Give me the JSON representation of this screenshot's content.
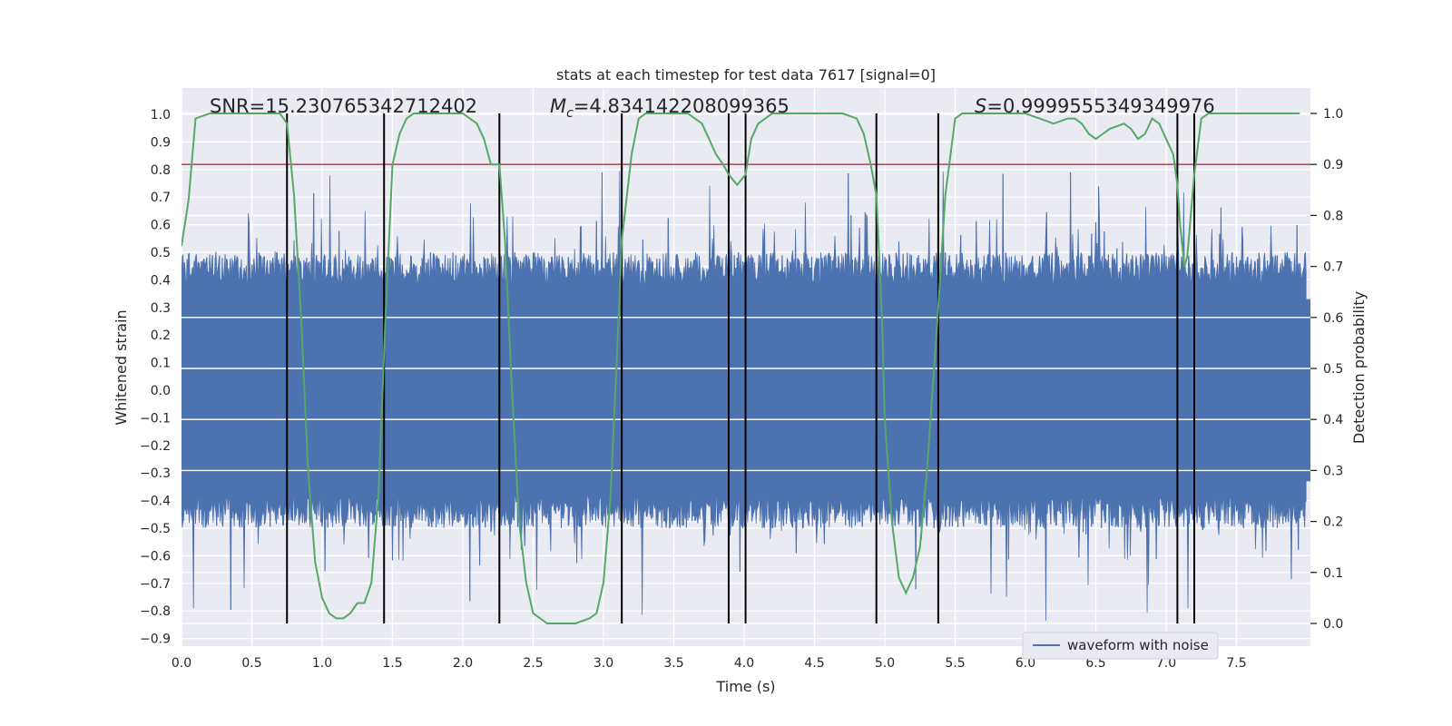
{
  "chart_data": {
    "type": "line",
    "title": "stats at each timestep for test data 7617 [signal=0]",
    "xlabel": "Time (s)",
    "ylabel_left": "Whitened strain",
    "ylabel_right": "Detection probability",
    "xlim": [
      0.0,
      8.0
    ],
    "ylim_left": [
      -0.95,
      1.08
    ],
    "ylim_right": [
      -0.05,
      1.03
    ],
    "x_ticks": [
      0.0,
      0.5,
      1.0,
      1.5,
      2.0,
      2.5,
      3.0,
      3.5,
      4.0,
      4.5,
      5.0,
      5.5,
      6.0,
      6.5,
      7.0,
      7.5
    ],
    "x_tick_labels": [
      "0.0",
      "0.5",
      "1.0",
      "1.5",
      "2.0",
      "2.5",
      "3.0",
      "3.5",
      "4.0",
      "4.5",
      "5.0",
      "5.5",
      "6.0",
      "6.5",
      "7.0",
      "7.5"
    ],
    "y_left_ticks": [
      1.0,
      0.9,
      0.8,
      0.7,
      0.6,
      0.5,
      0.4,
      0.3,
      0.2,
      0.1,
      0.0,
      -0.1,
      -0.2,
      -0.3,
      -0.4,
      -0.5,
      -0.6,
      -0.7,
      -0.8,
      -0.9
    ],
    "y_left_tick_labels": [
      "1.0",
      "0.9",
      "0.8",
      "0.7",
      "0.6",
      "0.5",
      "0.4",
      "0.3",
      "0.2",
      "0.1",
      "0.0",
      "−0.1",
      "−0.2",
      "−0.3",
      "−0.4",
      "−0.5",
      "−0.6",
      "−0.7",
      "−0.8",
      "−0.9"
    ],
    "y_right_ticks": [
      1.0,
      0.9,
      0.8,
      0.7,
      0.6,
      0.5,
      0.4,
      0.3,
      0.2,
      0.1,
      0.0
    ],
    "y_right_tick_labels": [
      "1.0",
      "0.9",
      "0.8",
      "0.7",
      "0.6",
      "0.5",
      "0.4",
      "0.3",
      "0.2",
      "0.1",
      "0.0"
    ],
    "annotations": {
      "snr": "SNR=15.230765342712402",
      "mc_symbol": "M",
      "mc_sub": "c",
      "mc_value": "=4.834142208099365",
      "s_symbol": "S",
      "s_value": "=0.9999555349349976"
    },
    "threshold_right": 0.9,
    "vertical_lines_x": [
      0.75,
      1.44,
      2.26,
      3.13,
      3.89,
      4.01,
      4.94,
      5.38,
      7.08,
      7.2
    ],
    "vertical_lines_range_right": [
      0.0,
      1.0
    ],
    "waveform": {
      "name": "waveform with noise",
      "x_range": [
        0.0,
        8.0
      ],
      "n_samples": 1600,
      "seed": 7617,
      "core_amplitude": 0.33,
      "envelope": {
        "max": 0.8,
        "min": -0.84
      }
    },
    "probability": {
      "name": "detection probability",
      "x": [
        0.0,
        0.05,
        0.1,
        0.2,
        0.3,
        0.4,
        0.5,
        0.6,
        0.65,
        0.7,
        0.75,
        0.8,
        0.85,
        0.9,
        0.95,
        1.0,
        1.05,
        1.1,
        1.15,
        1.2,
        1.25,
        1.3,
        1.35,
        1.4,
        1.45,
        1.5,
        1.55,
        1.6,
        1.65,
        1.7,
        1.8,
        1.9,
        2.0,
        2.05,
        2.1,
        2.15,
        2.2,
        2.26,
        2.3,
        2.35,
        2.4,
        2.45,
        2.5,
        2.6,
        2.7,
        2.8,
        2.9,
        2.95,
        3.0,
        3.05,
        3.1,
        3.13,
        3.2,
        3.25,
        3.3,
        3.4,
        3.5,
        3.6,
        3.7,
        3.75,
        3.8,
        3.85,
        3.89,
        3.95,
        4.01,
        4.05,
        4.1,
        4.2,
        4.3,
        4.4,
        4.5,
        4.6,
        4.7,
        4.8,
        4.85,
        4.9,
        4.94,
        4.98,
        5.0,
        5.05,
        5.1,
        5.15,
        5.2,
        5.25,
        5.3,
        5.35,
        5.38,
        5.43,
        5.5,
        5.55,
        5.6,
        5.7,
        5.8,
        5.9,
        6.0,
        6.1,
        6.2,
        6.3,
        6.35,
        6.4,
        6.45,
        6.5,
        6.55,
        6.6,
        6.7,
        6.75,
        6.8,
        6.85,
        6.9,
        6.95,
        7.0,
        7.05,
        7.08,
        7.1,
        7.13,
        7.15,
        7.2,
        7.25,
        7.3,
        7.35,
        7.4,
        7.5,
        7.7,
        7.95
      ],
      "y": [
        0.74,
        0.83,
        0.99,
        1.0,
        1.0,
        1.0,
        1.0,
        1.0,
        1.0,
        1.0,
        0.98,
        0.84,
        0.6,
        0.3,
        0.12,
        0.05,
        0.02,
        0.01,
        0.01,
        0.02,
        0.04,
        0.04,
        0.08,
        0.25,
        0.6,
        0.9,
        0.96,
        0.99,
        1.0,
        1.0,
        1.0,
        1.0,
        1.0,
        0.99,
        0.98,
        0.95,
        0.9,
        0.9,
        0.75,
        0.45,
        0.2,
        0.08,
        0.02,
        0.0,
        0.0,
        0.0,
        0.01,
        0.02,
        0.08,
        0.25,
        0.55,
        0.75,
        0.92,
        0.99,
        1.0,
        1.0,
        1.0,
        1.0,
        0.98,
        0.95,
        0.92,
        0.9,
        0.88,
        0.86,
        0.88,
        0.95,
        0.98,
        1.0,
        1.0,
        1.0,
        1.0,
        1.0,
        1.0,
        0.99,
        0.96,
        0.9,
        0.84,
        0.6,
        0.4,
        0.2,
        0.09,
        0.06,
        0.09,
        0.15,
        0.3,
        0.5,
        0.62,
        0.84,
        0.99,
        1.0,
        1.0,
        1.0,
        1.0,
        1.0,
        1.0,
        0.99,
        0.98,
        0.99,
        0.99,
        0.98,
        0.96,
        0.95,
        0.96,
        0.97,
        0.98,
        0.97,
        0.95,
        0.96,
        0.99,
        0.98,
        0.95,
        0.92,
        0.86,
        0.78,
        0.7,
        0.72,
        0.88,
        0.99,
        1.0,
        1.0,
        1.0,
        1.0,
        1.0,
        1.0
      ]
    },
    "legend": {
      "label": "waveform with noise",
      "placement": "lower-right"
    },
    "grid": true,
    "colors": {
      "waveform": "#4c72b0",
      "probability": "#55a868",
      "threshold": "#c44e52",
      "vlines": "#000000",
      "axes_bg": "#eaeaf2",
      "grid": "#ffffff"
    }
  }
}
